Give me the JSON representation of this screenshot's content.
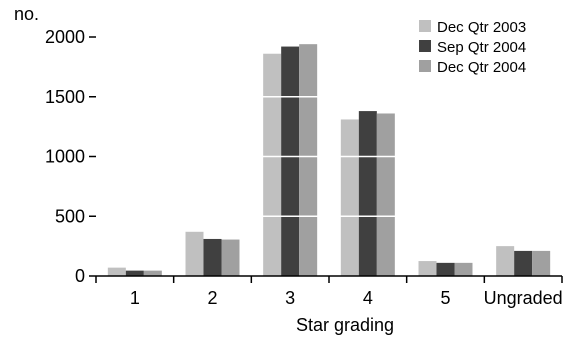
{
  "chart_data": {
    "type": "bar",
    "title": "",
    "ylabel": "no.",
    "xlabel": "Star grading",
    "categories": [
      "1",
      "2",
      "3",
      "4",
      "5",
      "Ungraded"
    ],
    "ylim": [
      0,
      2000
    ],
    "yticks": [
      "0",
      "500",
      "1000",
      "1500",
      "2000"
    ],
    "grid": "white horizontal lines drawn across the bars",
    "legend_position": "top-right",
    "series": [
      {
        "name": "Dec Qtr 2003",
        "color": "#c0c0c0",
        "values": [
          70,
          370,
          1860,
          1310,
          125,
          250
        ]
      },
      {
        "name": "Sep Qtr 2004",
        "color": "#404040",
        "values": [
          45,
          310,
          1920,
          1380,
          110,
          210
        ]
      },
      {
        "name": "Dec Qtr 2004",
        "color": "#a0a0a0",
        "values": [
          45,
          305,
          1940,
          1360,
          110,
          210
        ]
      }
    ]
  }
}
